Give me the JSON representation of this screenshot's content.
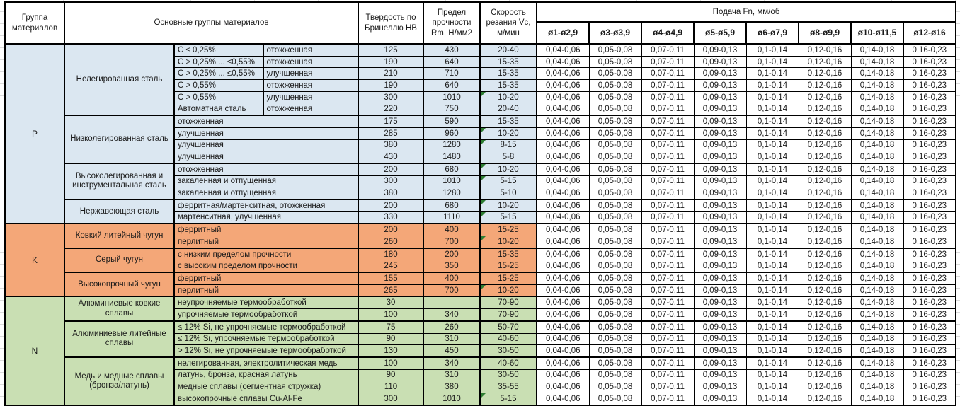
{
  "header": {
    "col_group": "Группа материалов",
    "col_main_groups": "Основные группы материалов",
    "col_hardness": "Твердость по Бринеллю HB",
    "col_strength": "Предел прочности Rm, Н/мм2",
    "col_speed": "Скорость резания Vc, м/мин",
    "feed_title": "Подача Fn, мм/об",
    "feed_cols": [
      "ø1-ø2,9",
      "ø3-ø3,9",
      "ø4-ø4,9",
      "ø5-ø5,9",
      "ø6-ø7,9",
      "ø8-ø9,9",
      "ø10-ø11,5",
      "ø12-ø16"
    ]
  },
  "feed_values": [
    "0,04-0,06",
    "0,05-0,08",
    "0,07-0,11",
    "0,09-0,13",
    "0,1-0,14",
    "0,12-0,16",
    "0,14-0,18",
    "0,16-0,23"
  ],
  "colors": {
    "p_fill": "#dbe7f1",
    "k_fill": "#f4a778",
    "n_fill": "#c9dfb3",
    "flag_triangle": "#2e7d32",
    "border": "#000000"
  },
  "groups": [
    {
      "code": "P",
      "fill": "#dbe7f1",
      "subgroups": [
        {
          "name": "Нелегированная сталь",
          "rows": [
            {
              "type": "С ≤ 0,25%",
              "state": "отожженная",
              "hb": "125",
              "rm": "430",
              "vc": "20-40",
              "flag": false
            },
            {
              "type": "С > 0,25% ... ≤0,55%",
              "state": "отожженная",
              "hb": "190",
              "rm": "640",
              "vc": "15-35",
              "flag": false
            },
            {
              "type": "С > 0,25% ... ≤0,55%",
              "state": "улучшенная",
              "hb": "210",
              "rm": "710",
              "vc": "15-35",
              "flag": false
            },
            {
              "type": "С > 0,55%",
              "state": "отожженная",
              "hb": "190",
              "rm": "640",
              "vc": "15-35",
              "flag": false
            },
            {
              "type": "С > 0,55%",
              "state": "улучшенная",
              "hb": "300",
              "rm": "1010",
              "vc": "10-20",
              "flag": true
            },
            {
              "type": "Автоматная сталь",
              "state": "отожженная",
              "hb": "220",
              "rm": "750",
              "vc": "20-40",
              "flag": false
            }
          ]
        },
        {
          "name": "Низколегированная сталь",
          "rows": [
            {
              "desc": "отожженная",
              "hb": "175",
              "rm": "590",
              "vc": "15-35",
              "flag": false
            },
            {
              "desc": "улучшенная",
              "hb": "285",
              "rm": "960",
              "vc": "10-20",
              "flag": true
            },
            {
              "desc": "улучшенная",
              "hb": "380",
              "rm": "1280",
              "vc": "8-15",
              "flag": true
            },
            {
              "desc": "улучшенная",
              "hb": "430",
              "rm": "1480",
              "vc": "5-8",
              "flag": false
            }
          ]
        },
        {
          "name": "Высоколегированная и инструментальная сталь",
          "rows": [
            {
              "desc": "отожженная",
              "hb": "200",
              "rm": "680",
              "vc": "10-20",
              "flag": true
            },
            {
              "desc": "закаленная и отпущенная",
              "hb": "300",
              "rm": "1010",
              "vc": "5-15",
              "flag": true
            },
            {
              "desc": "закаленная и отпущенная",
              "hb": "380",
              "rm": "1280",
              "vc": "5-10",
              "flag": false
            }
          ]
        },
        {
          "name": "Нержавеющая сталь",
          "rows": [
            {
              "desc": "ферритная/мартенситная, отожженная",
              "hb": "200",
              "rm": "680",
              "vc": "10-20",
              "flag": true
            },
            {
              "desc": "мартенситная, улучшенная",
              "hb": "330",
              "rm": "1110",
              "vc": "5-15",
              "flag": true
            }
          ]
        }
      ]
    },
    {
      "code": "K",
      "fill": "#f4a778",
      "subgroups": [
        {
          "name": "Ковкий литейный чугун",
          "rows": [
            {
              "desc": "ферритный",
              "hb": "200",
              "rm": "400",
              "vc": "15-25",
              "flag": false
            },
            {
              "desc": "перлитный",
              "hb": "260",
              "rm": "700",
              "vc": "10-20",
              "flag": true
            }
          ]
        },
        {
          "name": "Серый чугун",
          "rows": [
            {
              "desc": "с низким пределом прочности",
              "hb": "180",
              "rm": "200",
              "vc": "15-35",
              "flag": false
            },
            {
              "desc": "с высоким пределом прочности",
              "hb": "245",
              "rm": "350",
              "vc": "15-25",
              "flag": false
            }
          ]
        },
        {
          "name": "Высокопрочный чугун",
          "rows": [
            {
              "desc": "ферритный",
              "hb": "155",
              "rm": "400",
              "vc": "15-25",
              "flag": false
            },
            {
              "desc": "перлитный",
              "hb": "265",
              "rm": "700",
              "vc": "10-20",
              "flag": true
            }
          ]
        }
      ]
    },
    {
      "code": "N",
      "fill": "#c9dfb3",
      "subgroups": [
        {
          "name": "Алюминиевые ковкие сплавы",
          "rows": [
            {
              "desc": "неупрочняемые термообработкой",
              "hb": "30",
              "rm": "",
              "vc": "70-90",
              "flag": false
            },
            {
              "desc": "упрочняемые термообработкой",
              "hb": "100",
              "rm": "340",
              "vc": "70-90",
              "flag": false
            }
          ]
        },
        {
          "name": "Алюминиевые литейные сплавы",
          "rows": [
            {
              "desc": "≤ 12% Si, не упрочняемые термообработкой",
              "hb": "75",
              "rm": "260",
              "vc": "50-70",
              "flag": false
            },
            {
              "desc": "≤ 12% Si, упрочняемые термообработкой",
              "hb": "90",
              "rm": "310",
              "vc": "40-60",
              "flag": false
            },
            {
              "desc": "> 12% Si, не упрочняемые термообработкой",
              "hb": "130",
              "rm": "450",
              "vc": "30-50",
              "flag": false
            }
          ]
        },
        {
          "name": "Медь и медные сплавы (бронза/латунь)",
          "rows": [
            {
              "desc": "нелегированная, электролитическая медь",
              "hb": "100",
              "rm": "340",
              "vc": "40-60",
              "flag": false
            },
            {
              "desc": "латунь, бронза, красная латунь",
              "hb": "90",
              "rm": "310",
              "vc": "30-50",
              "flag": false
            },
            {
              "desc": "медные сплавы (сегментная стружка)",
              "hb": "110",
              "rm": "380",
              "vc": "35-55",
              "flag": false
            },
            {
              "desc": "высокопрочные сплавы Cu-Al-Fe",
              "hb": "300",
              "rm": "1010",
              "vc": "5-15",
              "flag": true
            }
          ]
        }
      ]
    }
  ]
}
